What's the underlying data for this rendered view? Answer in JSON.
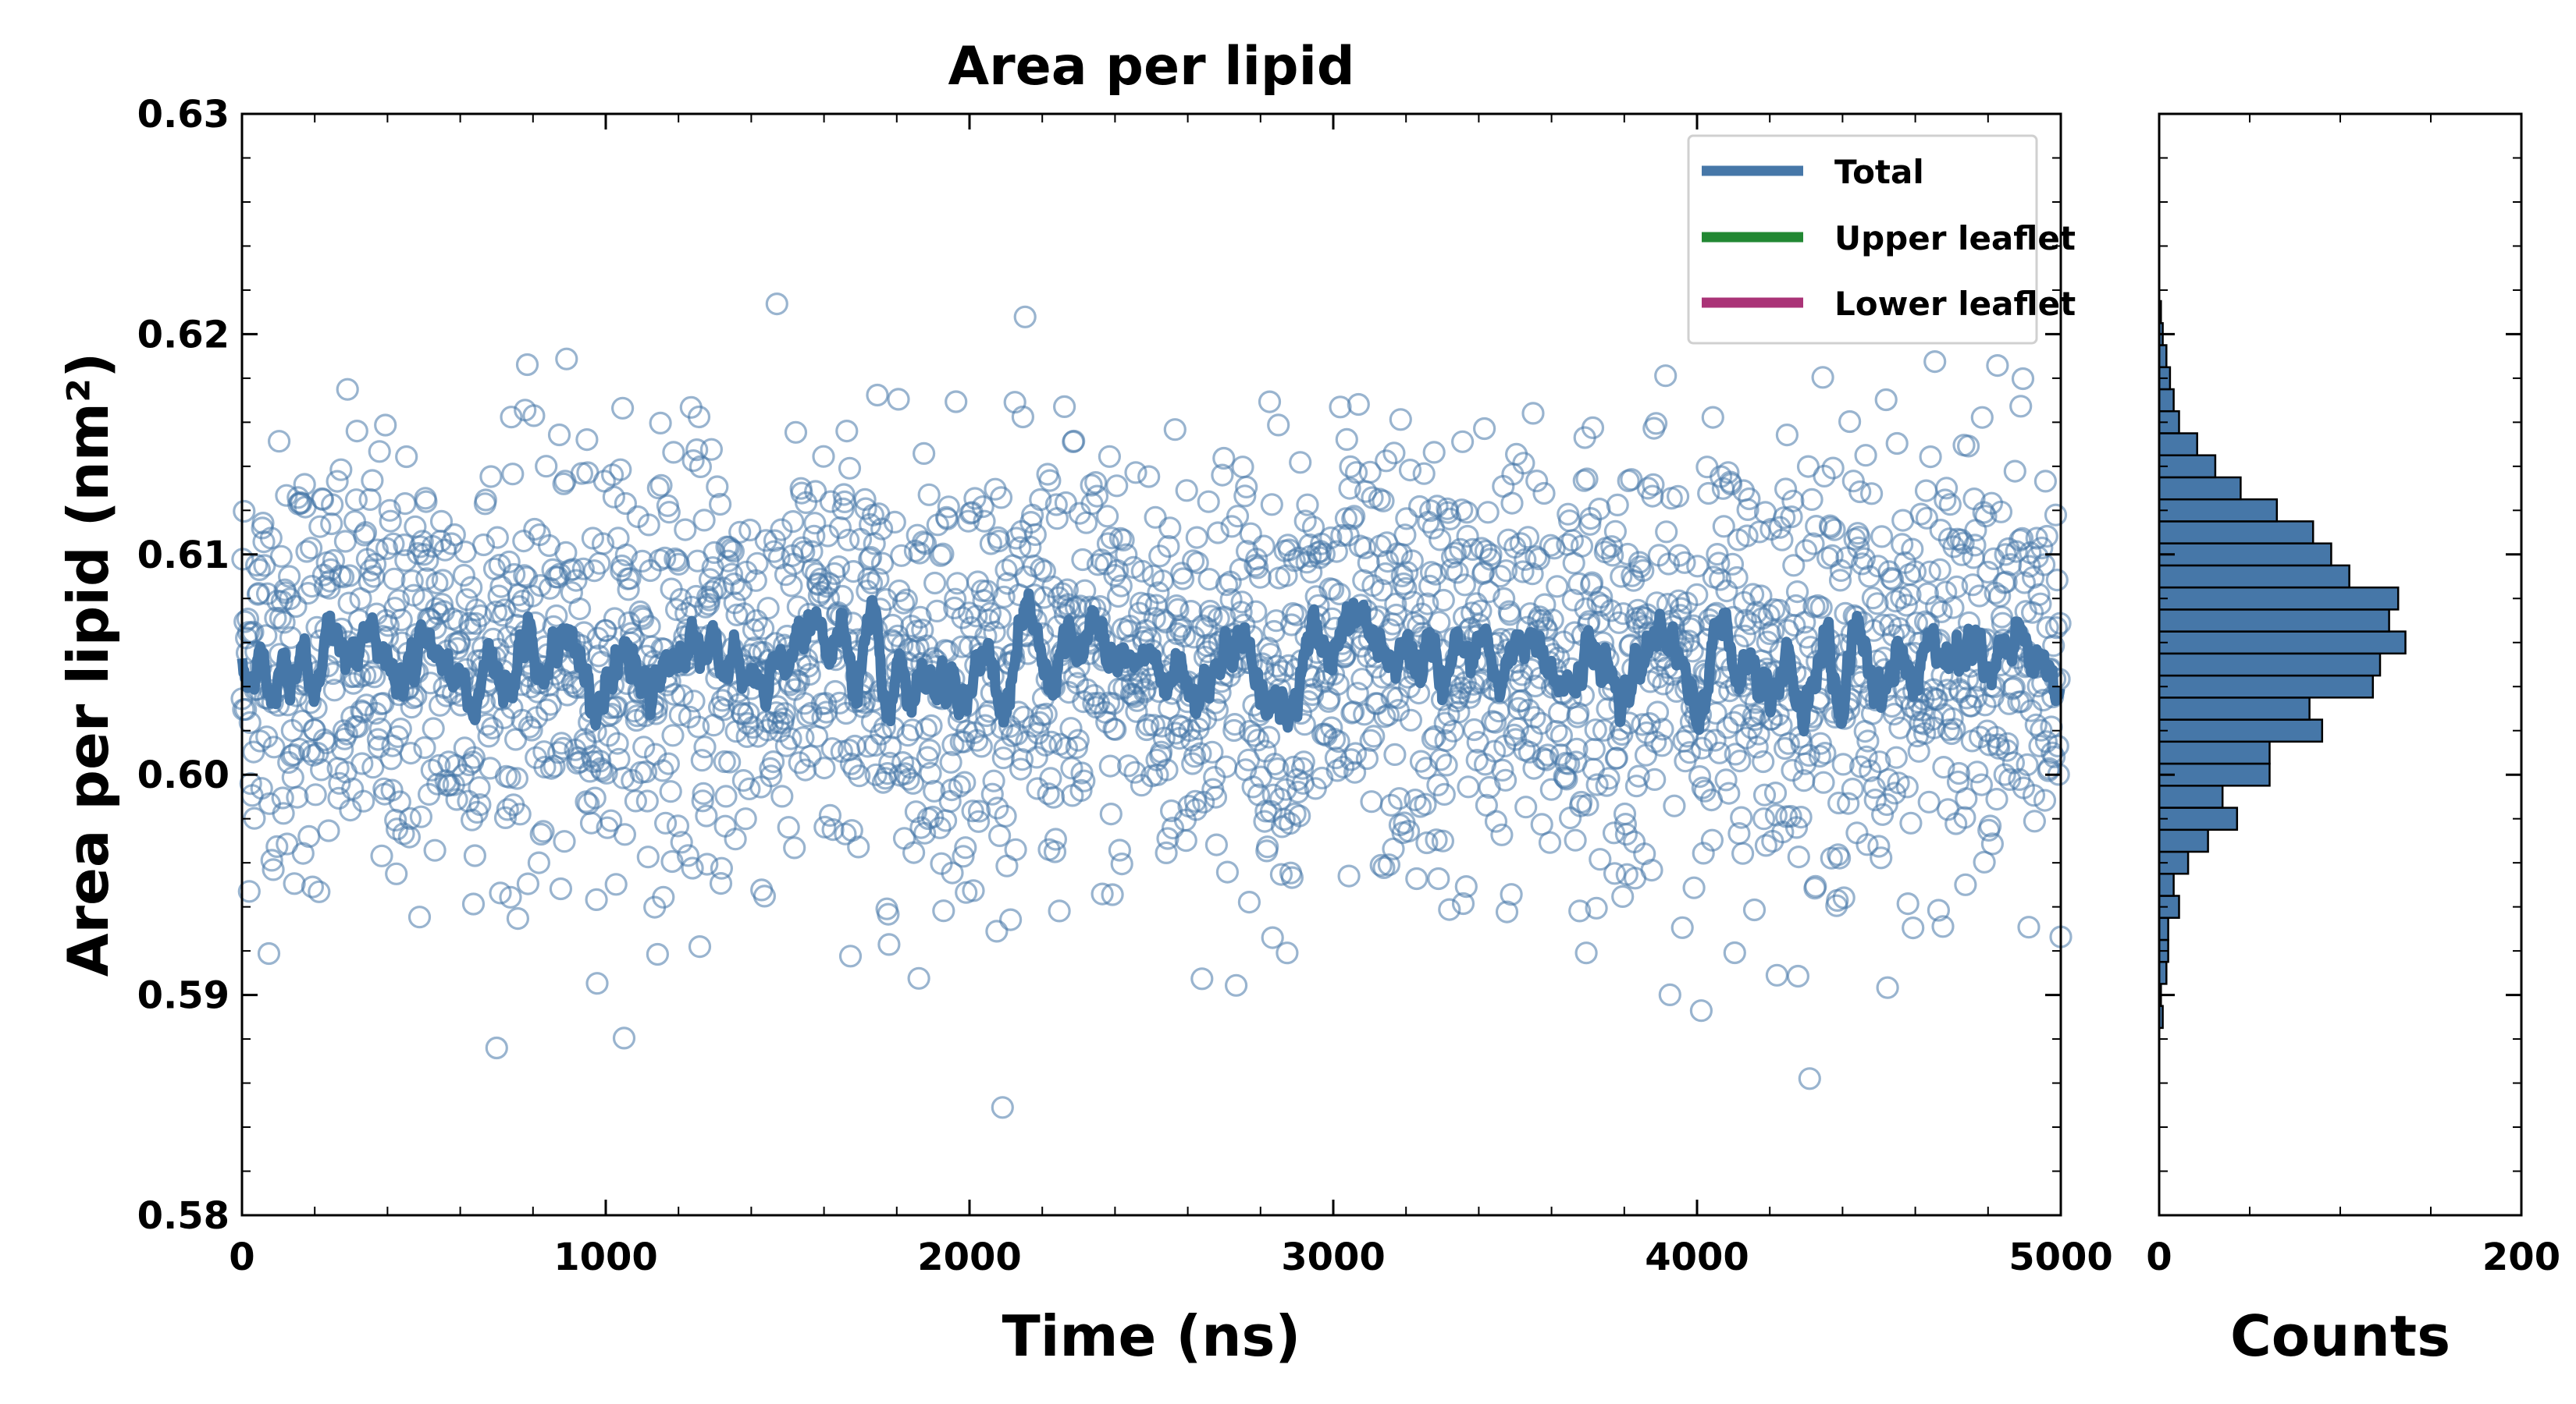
{
  "chart_data": [
    {
      "type": "scatter",
      "title": "Area per lipid",
      "xlabel": "Time (ns)",
      "ylabel": "Area per lipid (nm²)",
      "xlim": [
        0,
        5000
      ],
      "ylim": [
        0.58,
        0.63
      ],
      "xticks": [
        "0",
        "1000",
        "2000",
        "3000",
        "4000",
        "5000"
      ],
      "yticks": [
        "0.58",
        "0.59",
        "0.60",
        "0.61",
        "0.62",
        "0.63"
      ],
      "grid": false,
      "legend_position": "top-right",
      "legend": [
        {
          "name": "Total",
          "color": "#4677a8"
        },
        {
          "name": "Upper leaflet",
          "color": "#228833"
        },
        {
          "name": "Lower leaflet",
          "color": "#aa3377"
        }
      ],
      "series": [
        {
          "name": "Total",
          "kind": "scatter+running-average",
          "color": "#4677a8",
          "marker": "open-circle",
          "mean": 0.605,
          "std": 0.005,
          "n_points": 2500,
          "x_range": [
            0,
            5000
          ],
          "running_average_band": [
            0.601,
            0.61
          ]
        }
      ]
    },
    {
      "type": "bar",
      "orientation": "horizontal",
      "xlabel": "Counts",
      "xlim": [
        0,
        200
      ],
      "xticks": [
        "0",
        "200"
      ],
      "ylim": [
        0.58,
        0.63
      ],
      "color": "#4677a8",
      "bins": [
        {
          "y0": 0.5885,
          "y1": 0.5895,
          "count": 2
        },
        {
          "y0": 0.5895,
          "y1": 0.5905,
          "count": 1
        },
        {
          "y0": 0.5905,
          "y1": 0.5915,
          "count": 4
        },
        {
          "y0": 0.5915,
          "y1": 0.5925,
          "count": 5
        },
        {
          "y0": 0.5925,
          "y1": 0.5935,
          "count": 5
        },
        {
          "y0": 0.5935,
          "y1": 0.5945,
          "count": 11
        },
        {
          "y0": 0.5945,
          "y1": 0.5955,
          "count": 8
        },
        {
          "y0": 0.5955,
          "y1": 0.5965,
          "count": 16
        },
        {
          "y0": 0.5965,
          "y1": 0.5975,
          "count": 27
        },
        {
          "y0": 0.5975,
          "y1": 0.5985,
          "count": 43
        },
        {
          "y0": 0.5985,
          "y1": 0.5995,
          "count": 35
        },
        {
          "y0": 0.5995,
          "y1": 0.6005,
          "count": 61
        },
        {
          "y0": 0.6005,
          "y1": 0.6015,
          "count": 61
        },
        {
          "y0": 0.6015,
          "y1": 0.6025,
          "count": 90
        },
        {
          "y0": 0.6025,
          "y1": 0.6035,
          "count": 83
        },
        {
          "y0": 0.6035,
          "y1": 0.6045,
          "count": 118
        },
        {
          "y0": 0.6045,
          "y1": 0.6055,
          "count": 122
        },
        {
          "y0": 0.6055,
          "y1": 0.6065,
          "count": 136
        },
        {
          "y0": 0.6065,
          "y1": 0.6075,
          "count": 127
        },
        {
          "y0": 0.6075,
          "y1": 0.6085,
          "count": 132
        },
        {
          "y0": 0.6085,
          "y1": 0.6095,
          "count": 105
        },
        {
          "y0": 0.6095,
          "y1": 0.6105,
          "count": 95
        },
        {
          "y0": 0.6105,
          "y1": 0.6115,
          "count": 85
        },
        {
          "y0": 0.6115,
          "y1": 0.6125,
          "count": 65
        },
        {
          "y0": 0.6125,
          "y1": 0.6135,
          "count": 45
        },
        {
          "y0": 0.6135,
          "y1": 0.6145,
          "count": 31
        },
        {
          "y0": 0.6145,
          "y1": 0.6155,
          "count": 21
        },
        {
          "y0": 0.6155,
          "y1": 0.6165,
          "count": 11
        },
        {
          "y0": 0.6165,
          "y1": 0.6175,
          "count": 8
        },
        {
          "y0": 0.6175,
          "y1": 0.6185,
          "count": 6
        },
        {
          "y0": 0.6185,
          "y1": 0.6195,
          "count": 4
        },
        {
          "y0": 0.6195,
          "y1": 0.6205,
          "count": 2
        },
        {
          "y0": 0.6205,
          "y1": 0.6215,
          "count": 1
        }
      ]
    }
  ]
}
